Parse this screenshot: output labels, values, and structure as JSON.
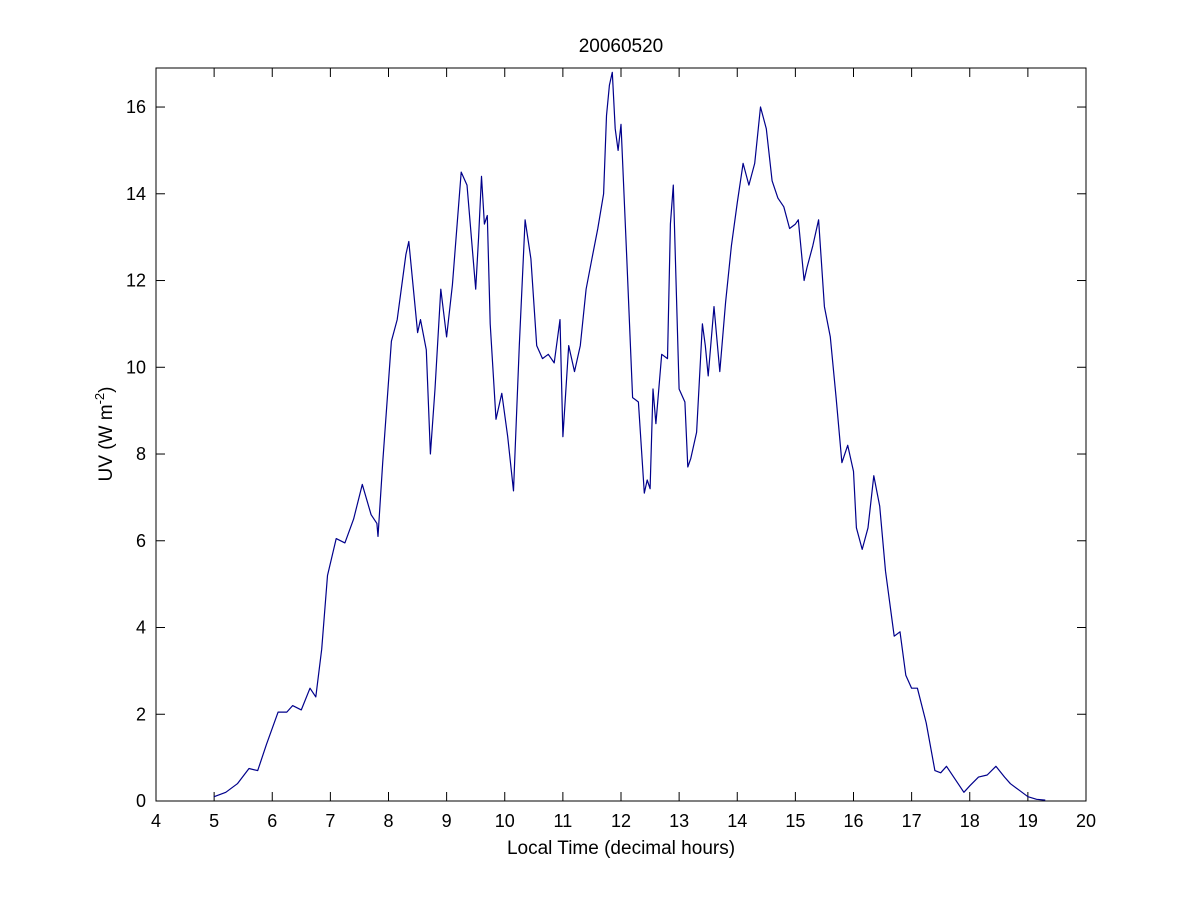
{
  "chart_data": {
    "type": "line",
    "title": "20060520",
    "xlabel": "Local Time (decimal hours)",
    "ylabel_base": "UV (W m",
    "ylabel_exp": "-2",
    "ylabel_close": ")",
    "xlim": [
      4,
      20
    ],
    "ylim": [
      0,
      16.9
    ],
    "xticks": [
      4,
      5,
      6,
      7,
      8,
      9,
      10,
      11,
      12,
      13,
      14,
      15,
      16,
      17,
      18,
      19,
      20
    ],
    "yticks": [
      0,
      2,
      4,
      6,
      8,
      10,
      12,
      14,
      16
    ],
    "grid": false,
    "line_color": "#00008b",
    "series": [
      {
        "x": [
          5.0,
          5.2,
          5.4,
          5.6,
          5.75,
          5.9,
          6.1,
          6.25,
          6.35,
          6.5,
          6.65,
          6.75,
          6.85,
          6.95,
          7.1,
          7.25,
          7.4,
          7.55,
          7.7,
          7.8,
          7.82,
          7.9,
          8.05,
          8.15,
          8.3,
          8.35,
          8.5,
          8.55,
          8.65,
          8.72,
          8.8,
          8.9,
          9.0,
          9.1,
          9.25,
          9.35,
          9.5,
          9.55,
          9.6,
          9.65,
          9.7,
          9.75,
          9.85,
          9.95,
          10.05,
          10.15,
          10.25,
          10.35,
          10.45,
          10.55,
          10.65,
          10.75,
          10.85,
          10.95,
          11.0,
          11.1,
          11.2,
          11.3,
          11.4,
          11.5,
          11.6,
          11.7,
          11.75,
          11.8,
          11.85,
          11.9,
          11.95,
          12.0,
          12.1,
          12.2,
          12.3,
          12.4,
          12.45,
          12.5,
          12.55,
          12.6,
          12.7,
          12.8,
          12.85,
          12.9,
          13.0,
          13.1,
          13.15,
          13.2,
          13.3,
          13.4,
          13.45,
          13.5,
          13.6,
          13.7,
          13.8,
          13.9,
          14.0,
          14.1,
          14.2,
          14.3,
          14.4,
          14.5,
          14.6,
          14.7,
          14.8,
          14.9,
          15.0,
          15.05,
          15.15,
          15.2,
          15.3,
          15.4,
          15.5,
          15.6,
          15.7,
          15.8,
          15.9,
          16.0,
          16.05,
          16.15,
          16.25,
          16.35,
          16.45,
          16.55,
          16.7,
          16.8,
          16.9,
          17.0,
          17.1,
          17.25,
          17.4,
          17.5,
          17.6,
          17.75,
          17.9,
          18.0,
          18.15,
          18.3,
          18.45,
          18.6,
          18.7,
          18.85,
          19.0,
          19.15,
          19.3
        ],
        "y": [
          0.1,
          0.2,
          0.4,
          0.75,
          0.7,
          1.3,
          2.05,
          2.05,
          2.2,
          2.1,
          2.6,
          2.4,
          3.5,
          5.2,
          6.05,
          5.95,
          6.5,
          7.3,
          6.6,
          6.4,
          6.1,
          7.8,
          10.6,
          11.1,
          12.6,
          12.9,
          10.8,
          11.1,
          10.4,
          8.0,
          9.5,
          11.8,
          10.7,
          11.9,
          14.5,
          14.2,
          11.8,
          13.0,
          14.4,
          13.3,
          13.5,
          11.0,
          8.8,
          9.4,
          8.4,
          7.15,
          10.5,
          13.4,
          12.5,
          10.5,
          10.2,
          10.3,
          10.1,
          11.1,
          8.4,
          10.5,
          9.9,
          10.5,
          11.8,
          12.5,
          13.2,
          14.0,
          15.8,
          16.5,
          16.8,
          15.5,
          15.0,
          15.6,
          12.5,
          9.3,
          9.2,
          7.1,
          7.4,
          7.2,
          9.5,
          8.7,
          10.3,
          10.2,
          13.3,
          14.2,
          9.5,
          9.2,
          7.7,
          7.9,
          8.5,
          11.0,
          10.5,
          9.8,
          11.4,
          9.9,
          11.5,
          12.8,
          13.8,
          14.7,
          14.2,
          14.7,
          16.0,
          15.5,
          14.3,
          13.9,
          13.7,
          13.2,
          13.3,
          13.4,
          12.0,
          12.3,
          12.8,
          13.4,
          11.4,
          10.7,
          9.3,
          7.8,
          8.2,
          7.6,
          6.3,
          5.8,
          6.3,
          7.5,
          6.8,
          5.3,
          3.8,
          3.9,
          2.9,
          2.6,
          2.6,
          1.8,
          0.7,
          0.65,
          0.8,
          0.5,
          0.2,
          0.35,
          0.55,
          0.6,
          0.8,
          0.55,
          0.4,
          0.25,
          0.1,
          0.04,
          0.02
        ]
      }
    ]
  }
}
